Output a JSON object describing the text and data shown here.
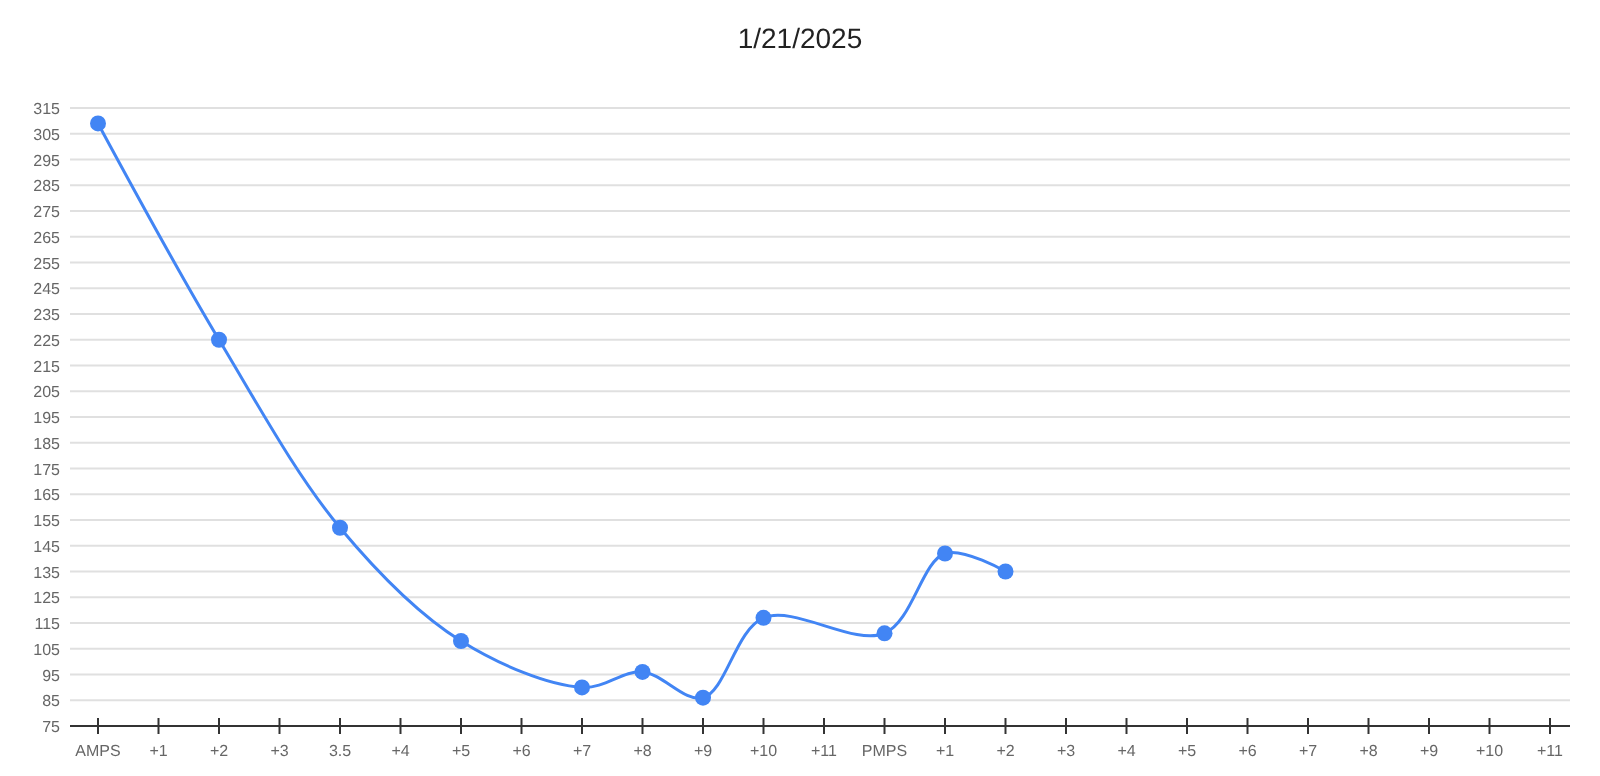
{
  "chart_data": {
    "type": "line",
    "title": "1/21/2025",
    "categories": [
      "AMPS",
      "+1",
      "+2",
      "+3",
      "3.5",
      "+4",
      "+5",
      "+6",
      "+7",
      "+8",
      "+9",
      "+10",
      "+11",
      "PMPS",
      "+1",
      "+2",
      "+3",
      "+4",
      "+5",
      "+6",
      "+7",
      "+8",
      "+9",
      "+10",
      "+11"
    ],
    "series": [
      {
        "color": "#4285f4",
        "values": [
          309,
          null,
          225,
          null,
          152,
          null,
          108,
          null,
          90,
          96,
          86,
          117,
          null,
          111,
          142,
          135,
          null,
          null,
          null,
          null,
          null,
          null,
          null,
          null,
          null
        ]
      }
    ],
    "ylim": [
      75,
      315
    ],
    "yticks": [
      75,
      85,
      95,
      105,
      115,
      125,
      135,
      145,
      155,
      165,
      175,
      185,
      195,
      205,
      215,
      225,
      235,
      245,
      255,
      265,
      275,
      285,
      295,
      305,
      315
    ],
    "grid": "y",
    "marker": "circle",
    "line_style": "solid"
  }
}
